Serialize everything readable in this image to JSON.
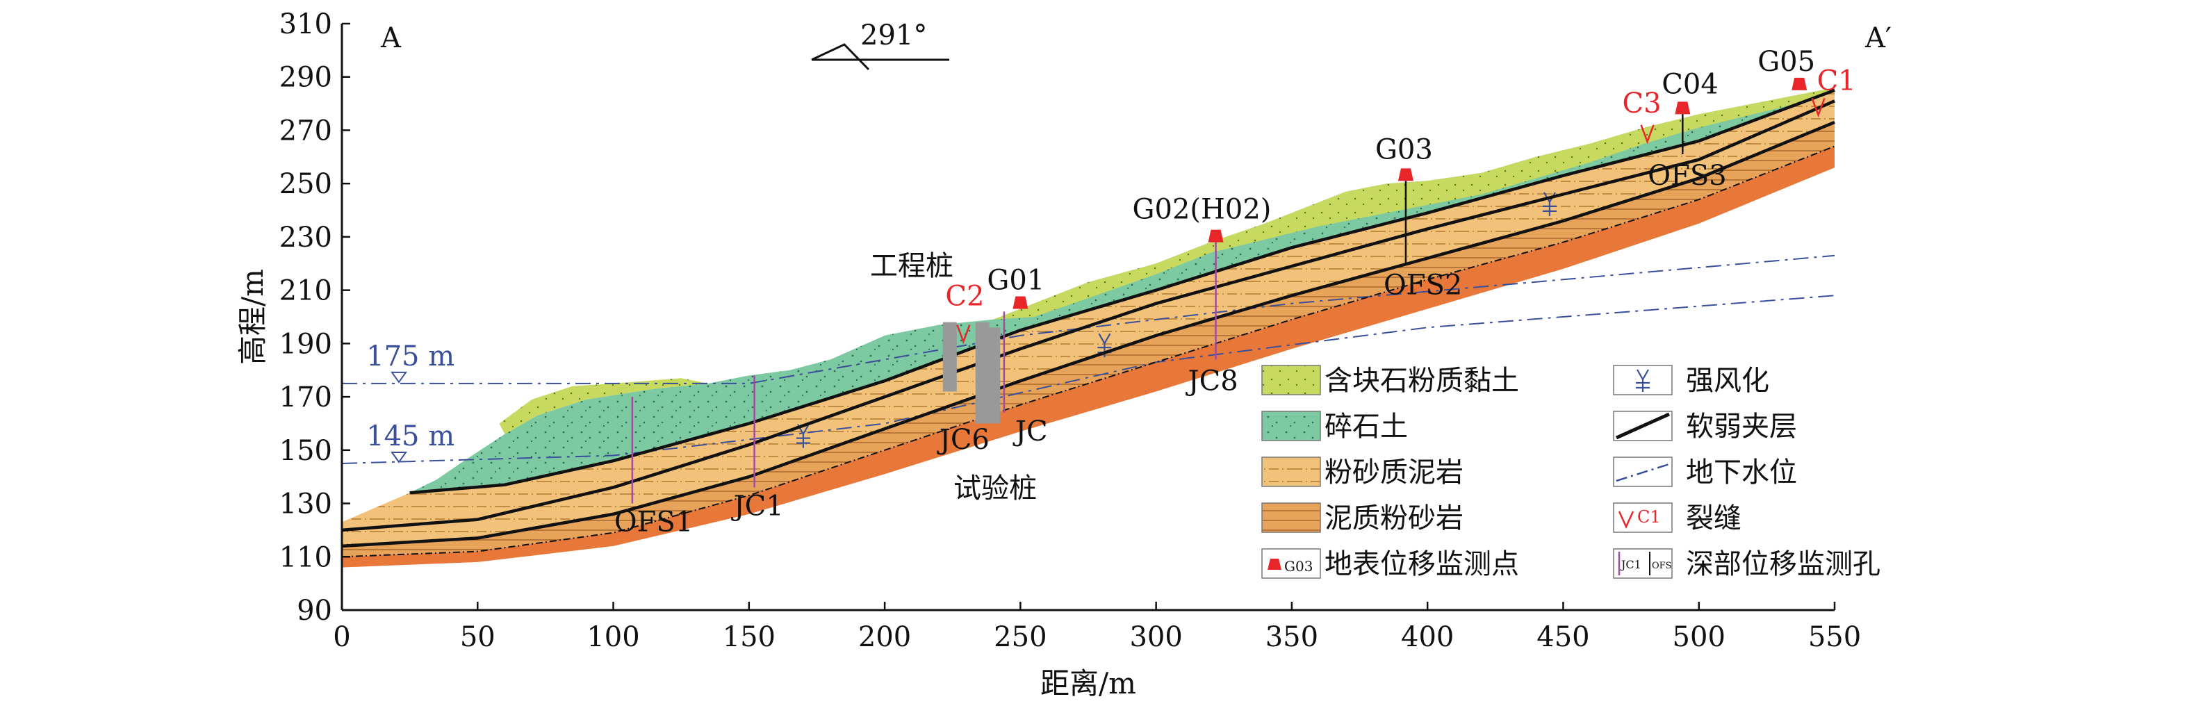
{
  "axes": {
    "x_title": "距离/m",
    "y_title": "高程/m",
    "x_ticks": [
      "0",
      "50",
      "100",
      "150",
      "200",
      "250",
      "300",
      "350",
      "400",
      "450",
      "500",
      "550"
    ],
    "y_ticks": [
      "90",
      "110",
      "130",
      "150",
      "170",
      "190",
      "210",
      "230",
      "250",
      "270",
      "290",
      "310"
    ],
    "x_range": [
      0,
      550
    ],
    "y_range": [
      90,
      310
    ]
  },
  "section": {
    "start": "A",
    "end": "A′",
    "azimuth": "291°"
  },
  "water_levels": [
    {
      "label": "175 m",
      "elevation": 175
    },
    {
      "label": "145 m",
      "elevation": 145
    }
  ],
  "surface_points": [
    {
      "label": "G01",
      "distance": 250
    },
    {
      "label": "G02(H02)",
      "distance": 322
    },
    {
      "label": "G03",
      "distance": 392
    },
    {
      "label": "C04",
      "distance": 494
    },
    {
      "label": "G05",
      "distance": 537
    }
  ],
  "boreholes": [
    {
      "label": "OFS1",
      "distance": 107
    },
    {
      "label": "JC1",
      "distance": 152
    },
    {
      "label": "JC6",
      "distance": 235
    },
    {
      "label": "JC",
      "distance": 244
    },
    {
      "label": "JC8",
      "distance": 322
    },
    {
      "label": "OFS2",
      "distance": 392
    },
    {
      "label": "OFS3",
      "distance": 494
    }
  ],
  "cracks": [
    {
      "label": "C1",
      "distance": 544
    },
    {
      "label": "C2",
      "distance": 229
    },
    {
      "label": "C3",
      "distance": 481
    }
  ],
  "piles": {
    "engineering_label": "工程桩",
    "test_label": "试验桩"
  },
  "legend": [
    {
      "key": "gravel-clay",
      "label": "含块石粉质黏土"
    },
    {
      "key": "gravel-soil",
      "label": "碎石土"
    },
    {
      "key": "silty-mudstone",
      "label": "粉砂质泥岩"
    },
    {
      "key": "argillaceous-siltstone",
      "label": "泥质粉砂岩"
    },
    {
      "key": "surface-monitor",
      "label": "地表位移监测点",
      "sample": "G03"
    },
    {
      "key": "weathering",
      "label": "强风化"
    },
    {
      "key": "weak-layer",
      "label": "软弱夹层"
    },
    {
      "key": "groundwater",
      "label": "地下水位"
    },
    {
      "key": "crack",
      "label": "裂缝",
      "sample": "C1"
    },
    {
      "key": "deep-monitor",
      "label": "深部位移监测孔",
      "sample_a": "JC1",
      "sample_b": "OFS"
    }
  ],
  "colors": {
    "clay": "#c7d95f",
    "gravel": "#7cc9a2",
    "mudstone": "#f2c27a",
    "siltstone": "#e8a35b",
    "bedrock": "#e8773a",
    "red": "#e8262a",
    "blue": "#3a4f9a",
    "borehole": "#a04aa0"
  }
}
